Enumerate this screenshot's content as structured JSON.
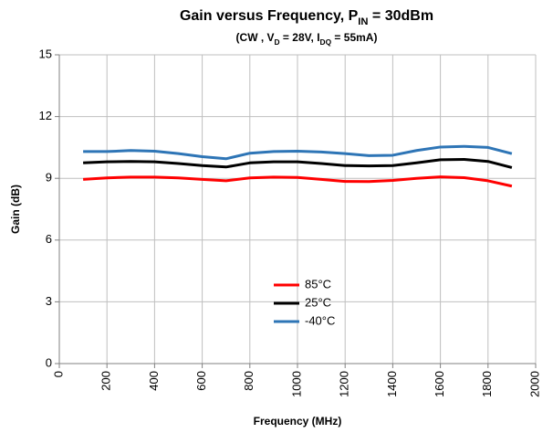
{
  "chart_data": {
    "type": "line",
    "title": [
      {
        "text": "Gain versus Frequency, P"
      },
      {
        "text": "IN",
        "sub": true
      },
      {
        "text": " = 30dBm"
      }
    ],
    "subtitle": [
      {
        "text": "(CW , V"
      },
      {
        "text": "D",
        "sub": true
      },
      {
        "text": " = 28V, I"
      },
      {
        "text": "DQ",
        "sub": true
      },
      {
        "text": " = 55mA)"
      }
    ],
    "x_label": "Frequency (MHz)",
    "y_label": "Gain (dB)",
    "x": [
      100,
      200,
      300,
      400,
      500,
      600,
      700,
      800,
      900,
      1000,
      1100,
      1200,
      1300,
      1400,
      1500,
      1600,
      1700,
      1800,
      1900
    ],
    "series": [
      {
        "name": "85°C",
        "color": "#ff0000",
        "values": [
          8.95,
          9.02,
          9.06,
          9.06,
          9.02,
          8.95,
          8.88,
          9.02,
          9.06,
          9.04,
          8.95,
          8.85,
          8.84,
          8.9,
          9.0,
          9.07,
          9.03,
          8.88,
          8.62
        ]
      },
      {
        "name": "25°C",
        "color": "#000000",
        "values": [
          9.75,
          9.8,
          9.82,
          9.8,
          9.72,
          9.62,
          9.55,
          9.75,
          9.8,
          9.8,
          9.72,
          9.62,
          9.6,
          9.62,
          9.75,
          9.9,
          9.92,
          9.82,
          9.52
        ]
      },
      {
        "name": "-40°C",
        "color": "#2e75b6",
        "values": [
          10.3,
          10.3,
          10.35,
          10.32,
          10.2,
          10.05,
          9.95,
          10.22,
          10.3,
          10.32,
          10.28,
          10.2,
          10.1,
          10.12,
          10.35,
          10.52,
          10.55,
          10.5,
          10.2
        ]
      }
    ],
    "xlim": [
      0,
      2000
    ],
    "xticks": [
      0,
      200,
      400,
      600,
      800,
      1000,
      1200,
      1400,
      1600,
      1800,
      2000
    ],
    "ylim": [
      0,
      15
    ],
    "yticks": [
      0,
      3,
      6,
      9,
      12,
      15
    ],
    "grid": true
  }
}
